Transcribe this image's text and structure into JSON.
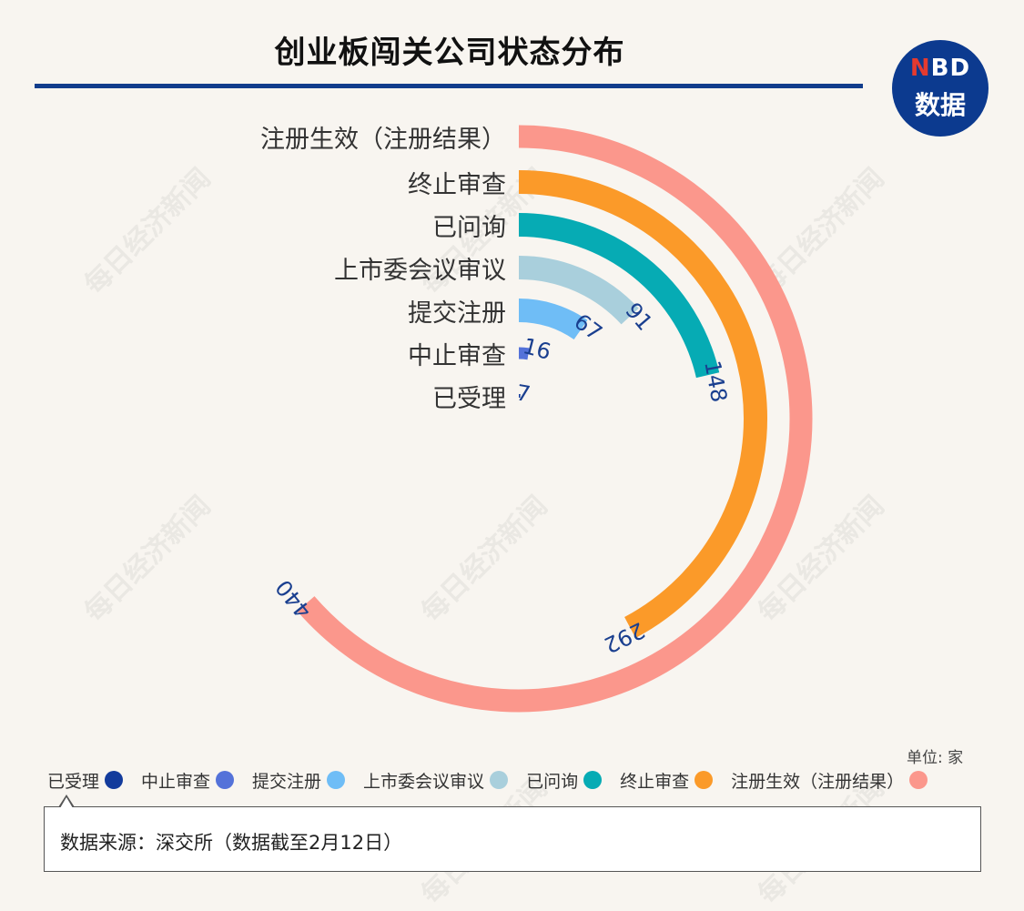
{
  "header": {
    "title": "创业板闯关公司状态分布"
  },
  "logo": {
    "line1_n": "N",
    "line1_rest": "BD",
    "line2": "数据"
  },
  "watermark": "每日经济新闻",
  "unit": "单位: 家",
  "source": "数据来源：深交所（数据截至2月12日）",
  "colors": {
    "background": "#f8f5f0",
    "title_rule": "#123d8c",
    "value_label": "#1a3f8f"
  },
  "chart_data": {
    "type": "radial-bar",
    "title": "创业板闯关公司状态分布",
    "unit": "家",
    "max": 440,
    "series": [
      {
        "name": "注册生效（注册结果）",
        "value": 440,
        "color": "#fb978c"
      },
      {
        "name": "终止审查",
        "value": 292,
        "color": "#fb9a29"
      },
      {
        "name": "已问询",
        "value": 148,
        "color": "#06abb4"
      },
      {
        "name": "上市委会议审议",
        "value": 91,
        "color": "#a9cfdc"
      },
      {
        "name": "提交注册",
        "value": 67,
        "color": "#6fbdf6"
      },
      {
        "name": "中止审查",
        "value": 16,
        "color": "#5472d9"
      },
      {
        "name": "已受理",
        "value": 7,
        "color": "#133b9c"
      }
    ],
    "legend": [
      {
        "name": "已受理",
        "color": "#133b9c"
      },
      {
        "name": "中止审查",
        "color": "#5472d9"
      },
      {
        "name": "提交注册",
        "color": "#6fbdf6"
      },
      {
        "name": "上市委会议审议",
        "color": "#a9cfdc"
      },
      {
        "name": "已问询",
        "color": "#06abb4"
      },
      {
        "name": "终止审查",
        "color": "#fb9a29"
      },
      {
        "name": "注册生效（注册结果）",
        "color": "#fb978c"
      }
    ],
    "legend_position": "bottom"
  }
}
